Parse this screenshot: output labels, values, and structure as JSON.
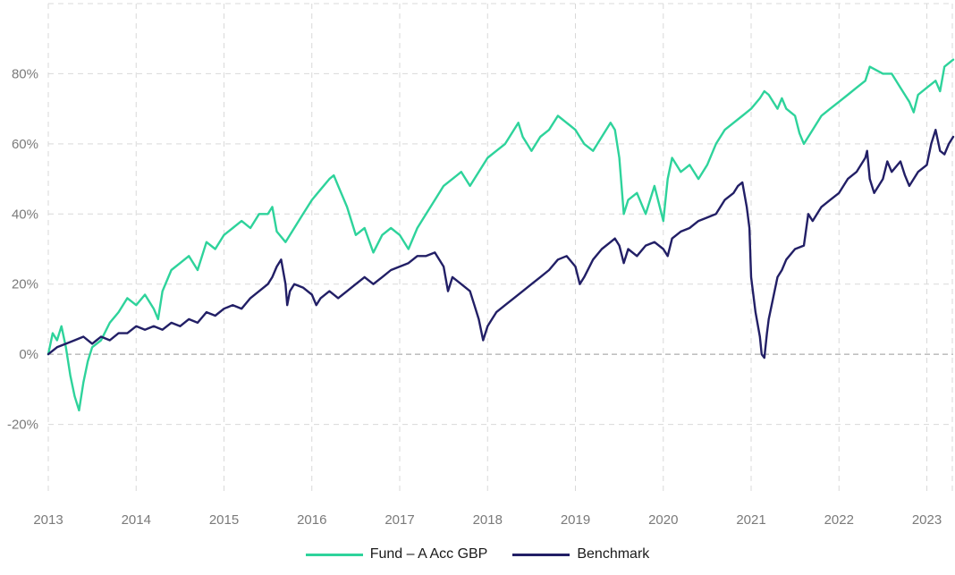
{
  "chart_data": {
    "type": "line",
    "title": "",
    "xlabel": "",
    "ylabel": "",
    "ylim": [
      -40,
      100
    ],
    "xlim": [
      2013.0,
      2023.3
    ],
    "y_ticks": [
      -20,
      0,
      20,
      40,
      60,
      80
    ],
    "y_tick_labels": [
      "-20%",
      "0%",
      "20%",
      "40%",
      "60%",
      "80%"
    ],
    "x_ticks": [
      2013,
      2014,
      2015,
      2016,
      2017,
      2018,
      2019,
      2020,
      2021,
      2022,
      2023
    ],
    "x_tick_labels": [
      "2013",
      "2014",
      "2015",
      "2016",
      "2017",
      "2018",
      "2019",
      "2020",
      "2021",
      "2022",
      "2023"
    ],
    "grid": true,
    "legend_position": "bottom-center",
    "series": [
      {
        "name": "Fund – A Acc GBP",
        "color": "#2ed39b",
        "points": [
          [
            2013.0,
            0
          ],
          [
            2013.05,
            6
          ],
          [
            2013.1,
            4
          ],
          [
            2013.15,
            8
          ],
          [
            2013.2,
            2
          ],
          [
            2013.25,
            -6
          ],
          [
            2013.3,
            -12
          ],
          [
            2013.35,
            -16
          ],
          [
            2013.4,
            -8
          ],
          [
            2013.45,
            -2
          ],
          [
            2013.5,
            2
          ],
          [
            2013.6,
            4
          ],
          [
            2013.7,
            9
          ],
          [
            2013.8,
            12
          ],
          [
            2013.9,
            16
          ],
          [
            2014.0,
            14
          ],
          [
            2014.1,
            17
          ],
          [
            2014.2,
            13
          ],
          [
            2014.25,
            10
          ],
          [
            2014.3,
            18
          ],
          [
            2014.4,
            24
          ],
          [
            2014.5,
            26
          ],
          [
            2014.6,
            28
          ],
          [
            2014.7,
            24
          ],
          [
            2014.8,
            32
          ],
          [
            2014.9,
            30
          ],
          [
            2015.0,
            34
          ],
          [
            2015.1,
            36
          ],
          [
            2015.2,
            38
          ],
          [
            2015.3,
            36
          ],
          [
            2015.4,
            40
          ],
          [
            2015.5,
            40
          ],
          [
            2015.55,
            42
          ],
          [
            2015.6,
            35
          ],
          [
            2015.7,
            32
          ],
          [
            2015.8,
            36
          ],
          [
            2015.9,
            40
          ],
          [
            2016.0,
            44
          ],
          [
            2016.1,
            47
          ],
          [
            2016.2,
            50
          ],
          [
            2016.25,
            51
          ],
          [
            2016.3,
            48
          ],
          [
            2016.4,
            42
          ],
          [
            2016.45,
            38
          ],
          [
            2016.5,
            34
          ],
          [
            2016.6,
            36
          ],
          [
            2016.7,
            29
          ],
          [
            2016.8,
            34
          ],
          [
            2016.9,
            36
          ],
          [
            2017.0,
            34
          ],
          [
            2017.1,
            30
          ],
          [
            2017.2,
            36
          ],
          [
            2017.3,
            40
          ],
          [
            2017.4,
            44
          ],
          [
            2017.5,
            48
          ],
          [
            2017.6,
            50
          ],
          [
            2017.7,
            52
          ],
          [
            2017.8,
            48
          ],
          [
            2017.9,
            52
          ],
          [
            2018.0,
            56
          ],
          [
            2018.1,
            58
          ],
          [
            2018.2,
            60
          ],
          [
            2018.3,
            64
          ],
          [
            2018.35,
            66
          ],
          [
            2018.4,
            62
          ],
          [
            2018.5,
            58
          ],
          [
            2018.6,
            62
          ],
          [
            2018.7,
            64
          ],
          [
            2018.8,
            68
          ],
          [
            2018.9,
            66
          ],
          [
            2019.0,
            64
          ],
          [
            2019.1,
            60
          ],
          [
            2019.2,
            58
          ],
          [
            2019.3,
            62
          ],
          [
            2019.4,
            66
          ],
          [
            2019.45,
            64
          ],
          [
            2019.5,
            56
          ],
          [
            2019.55,
            40
          ],
          [
            2019.6,
            44
          ],
          [
            2019.7,
            46
          ],
          [
            2019.8,
            40
          ],
          [
            2019.9,
            48
          ],
          [
            2020.0,
            38
          ],
          [
            2020.05,
            50
          ],
          [
            2020.1,
            56
          ],
          [
            2020.2,
            52
          ],
          [
            2020.3,
            54
          ],
          [
            2020.4,
            50
          ],
          [
            2020.5,
            54
          ],
          [
            2020.6,
            60
          ],
          [
            2020.7,
            64
          ],
          [
            2020.8,
            66
          ],
          [
            2020.9,
            68
          ],
          [
            2021.0,
            70
          ],
          [
            2021.1,
            73
          ],
          [
            2021.15,
            75
          ],
          [
            2021.2,
            74
          ],
          [
            2021.3,
            70
          ],
          [
            2021.35,
            73
          ],
          [
            2021.4,
            70
          ],
          [
            2021.5,
            68
          ],
          [
            2021.55,
            63
          ],
          [
            2021.6,
            60
          ],
          [
            2021.7,
            64
          ],
          [
            2021.8,
            68
          ],
          [
            2021.9,
            70
          ],
          [
            2022.0,
            72
          ],
          [
            2022.1,
            74
          ],
          [
            2022.2,
            76
          ],
          [
            2022.3,
            78
          ],
          [
            2022.35,
            82
          ],
          [
            2022.5,
            80
          ],
          [
            2022.6,
            80
          ],
          [
            2022.7,
            76
          ],
          [
            2022.8,
            72
          ],
          [
            2022.85,
            69
          ],
          [
            2022.9,
            74
          ],
          [
            2023.0,
            76
          ],
          [
            2023.1,
            78
          ],
          [
            2023.15,
            75
          ],
          [
            2023.2,
            82
          ],
          [
            2023.3,
            84
          ]
        ]
      },
      {
        "name": "Benchmark",
        "color": "#221f66",
        "points": [
          [
            2013.0,
            0
          ],
          [
            2013.05,
            1
          ],
          [
            2013.1,
            2
          ],
          [
            2013.2,
            3
          ],
          [
            2013.3,
            4
          ],
          [
            2013.4,
            5
          ],
          [
            2013.5,
            3
          ],
          [
            2013.55,
            4
          ],
          [
            2013.6,
            5
          ],
          [
            2013.7,
            4
          ],
          [
            2013.8,
            6
          ],
          [
            2013.9,
            6
          ],
          [
            2014.0,
            8
          ],
          [
            2014.1,
            7
          ],
          [
            2014.2,
            8
          ],
          [
            2014.3,
            7
          ],
          [
            2014.4,
            9
          ],
          [
            2014.5,
            8
          ],
          [
            2014.6,
            10
          ],
          [
            2014.7,
            9
          ],
          [
            2014.8,
            12
          ],
          [
            2014.9,
            11
          ],
          [
            2015.0,
            13
          ],
          [
            2015.1,
            14
          ],
          [
            2015.2,
            13
          ],
          [
            2015.3,
            16
          ],
          [
            2015.4,
            18
          ],
          [
            2015.5,
            20
          ],
          [
            2015.55,
            22
          ],
          [
            2015.6,
            25
          ],
          [
            2015.65,
            27
          ],
          [
            2015.7,
            20
          ],
          [
            2015.72,
            14
          ],
          [
            2015.75,
            18
          ],
          [
            2015.8,
            20
          ],
          [
            2015.9,
            19
          ],
          [
            2016.0,
            17
          ],
          [
            2016.05,
            14
          ],
          [
            2016.1,
            16
          ],
          [
            2016.2,
            18
          ],
          [
            2016.3,
            16
          ],
          [
            2016.4,
            18
          ],
          [
            2016.5,
            20
          ],
          [
            2016.6,
            22
          ],
          [
            2016.7,
            20
          ],
          [
            2016.8,
            22
          ],
          [
            2016.9,
            24
          ],
          [
            2017.0,
            25
          ],
          [
            2017.1,
            26
          ],
          [
            2017.2,
            28
          ],
          [
            2017.3,
            28
          ],
          [
            2017.4,
            29
          ],
          [
            2017.5,
            25
          ],
          [
            2017.55,
            18
          ],
          [
            2017.6,
            22
          ],
          [
            2017.7,
            20
          ],
          [
            2017.8,
            18
          ],
          [
            2017.85,
            14
          ],
          [
            2017.9,
            10
          ],
          [
            2017.95,
            4
          ],
          [
            2018.0,
            8
          ],
          [
            2018.05,
            10
          ],
          [
            2018.1,
            12
          ],
          [
            2018.2,
            14
          ],
          [
            2018.3,
            16
          ],
          [
            2018.4,
            18
          ],
          [
            2018.5,
            20
          ],
          [
            2018.6,
            22
          ],
          [
            2018.7,
            24
          ],
          [
            2018.8,
            27
          ],
          [
            2018.9,
            28
          ],
          [
            2019.0,
            25
          ],
          [
            2019.05,
            20
          ],
          [
            2019.1,
            22
          ],
          [
            2019.2,
            27
          ],
          [
            2019.3,
            30
          ],
          [
            2019.4,
            32
          ],
          [
            2019.45,
            33
          ],
          [
            2019.5,
            31
          ],
          [
            2019.55,
            26
          ],
          [
            2019.6,
            30
          ],
          [
            2019.7,
            28
          ],
          [
            2019.8,
            31
          ],
          [
            2019.9,
            32
          ],
          [
            2020.0,
            30
          ],
          [
            2020.05,
            28
          ],
          [
            2020.1,
            33
          ],
          [
            2020.2,
            35
          ],
          [
            2020.3,
            36
          ],
          [
            2020.4,
            38
          ],
          [
            2020.5,
            39
          ],
          [
            2020.6,
            40
          ],
          [
            2020.7,
            44
          ],
          [
            2020.8,
            46
          ],
          [
            2020.85,
            48
          ],
          [
            2020.9,
            49
          ],
          [
            2020.95,
            42
          ],
          [
            2020.98,
            36
          ],
          [
            2021.0,
            22
          ],
          [
            2021.05,
            12
          ],
          [
            2021.1,
            5
          ],
          [
            2021.12,
            0
          ],
          [
            2021.15,
            -1
          ],
          [
            2021.18,
            6
          ],
          [
            2021.2,
            10
          ],
          [
            2021.25,
            16
          ],
          [
            2021.3,
            22
          ],
          [
            2021.35,
            24
          ],
          [
            2021.4,
            27
          ],
          [
            2021.5,
            30
          ],
          [
            2021.6,
            31
          ],
          [
            2021.65,
            40
          ],
          [
            2021.7,
            38
          ],
          [
            2021.8,
            42
          ],
          [
            2021.9,
            44
          ],
          [
            2022.0,
            46
          ],
          [
            2022.1,
            50
          ],
          [
            2022.2,
            52
          ],
          [
            2022.3,
            56
          ],
          [
            2022.32,
            58
          ],
          [
            2022.35,
            50
          ],
          [
            2022.4,
            46
          ],
          [
            2022.5,
            50
          ],
          [
            2022.55,
            55
          ],
          [
            2022.6,
            52
          ],
          [
            2022.7,
            55
          ],
          [
            2022.75,
            51
          ],
          [
            2022.8,
            48
          ],
          [
            2022.9,
            52
          ],
          [
            2023.0,
            54
          ],
          [
            2023.05,
            60
          ],
          [
            2023.1,
            64
          ],
          [
            2023.15,
            58
          ],
          [
            2023.2,
            57
          ],
          [
            2023.25,
            60
          ],
          [
            2023.3,
            62
          ]
        ]
      }
    ]
  }
}
